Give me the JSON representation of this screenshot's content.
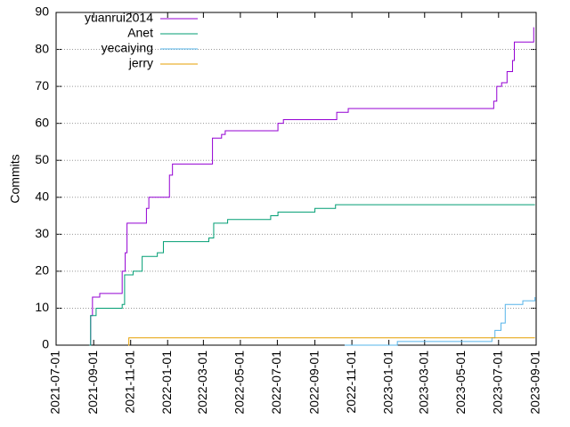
{
  "chart_data": {
    "type": "line",
    "ylabel": "Commits",
    "xlim": [
      "2021-07-01",
      "2023-09-01"
    ],
    "xticks": [
      "2021-07-01",
      "2021-09-01",
      "2021-11-01",
      "2022-01-01",
      "2022-03-01",
      "2022-05-01",
      "2022-07-01",
      "2022-09-01",
      "2022-11-01",
      "2023-01-01",
      "2023-03-01",
      "2023-05-01",
      "2023-07-01",
      "2023-09-01"
    ],
    "ylim": [
      0,
      90
    ],
    "yticks": [
      0,
      10,
      20,
      30,
      40,
      50,
      60,
      70,
      80,
      90
    ],
    "grid": true,
    "legend": "top-left",
    "series": [
      {
        "name": "yuanrui2014",
        "color": "#9400d3",
        "x": [
          "2021-08-25",
          "2021-08-27",
          "2021-08-30",
          "2021-09-11",
          "2021-10-18",
          "2021-10-23",
          "2021-10-26",
          "2021-11-27",
          "2021-12-01",
          "2021-12-07",
          "2022-01-04",
          "2022-01-09",
          "2022-01-13",
          "2022-03-16",
          "2022-03-31",
          "2022-04-06",
          "2022-07-02",
          "2022-07-11",
          "2022-10-07",
          "2022-10-26",
          "2023-06-23",
          "2023-06-28",
          "2023-07-06",
          "2023-07-15",
          "2023-07-24",
          "2023-07-27",
          "2023-08-28"
        ],
        "values": [
          0,
          8,
          13,
          14,
          20,
          25,
          33,
          37,
          40,
          40,
          46,
          49,
          49,
          56,
          57,
          58,
          60,
          61,
          63,
          64,
          66,
          70,
          71,
          74,
          77,
          82,
          86
        ]
      },
      {
        "name": "Anet",
        "color": "#009e73",
        "x": [
          "2021-08-25",
          "2021-08-27",
          "2021-09-05",
          "2021-10-18",
          "2021-10-22",
          "2021-11-05",
          "2021-11-20",
          "2021-12-15",
          "2021-12-25",
          "2022-03-10",
          "2022-03-18",
          "2022-04-10",
          "2022-06-20",
          "2022-07-02",
          "2022-09-01",
          "2022-10-05",
          "2023-08-30"
        ],
        "values": [
          0,
          8,
          10,
          11,
          19,
          20,
          24,
          25,
          28,
          29,
          33,
          34,
          35,
          36,
          37,
          38,
          38
        ]
      },
      {
        "name": "yecaiying",
        "color": "#56b4e9",
        "x": [
          "2022-10-20",
          "2023-01-15",
          "2023-06-20",
          "2023-06-25",
          "2023-07-05",
          "2023-07-12",
          "2023-08-10",
          "2023-08-30"
        ],
        "values": [
          0,
          1,
          2,
          4,
          6,
          11,
          12,
          13
        ]
      },
      {
        "name": "jerry",
        "color": "#e69f00",
        "x": [
          "2021-10-28",
          "2021-10-29",
          "2023-08-30"
        ],
        "values": [
          0,
          2,
          2
        ]
      }
    ]
  }
}
